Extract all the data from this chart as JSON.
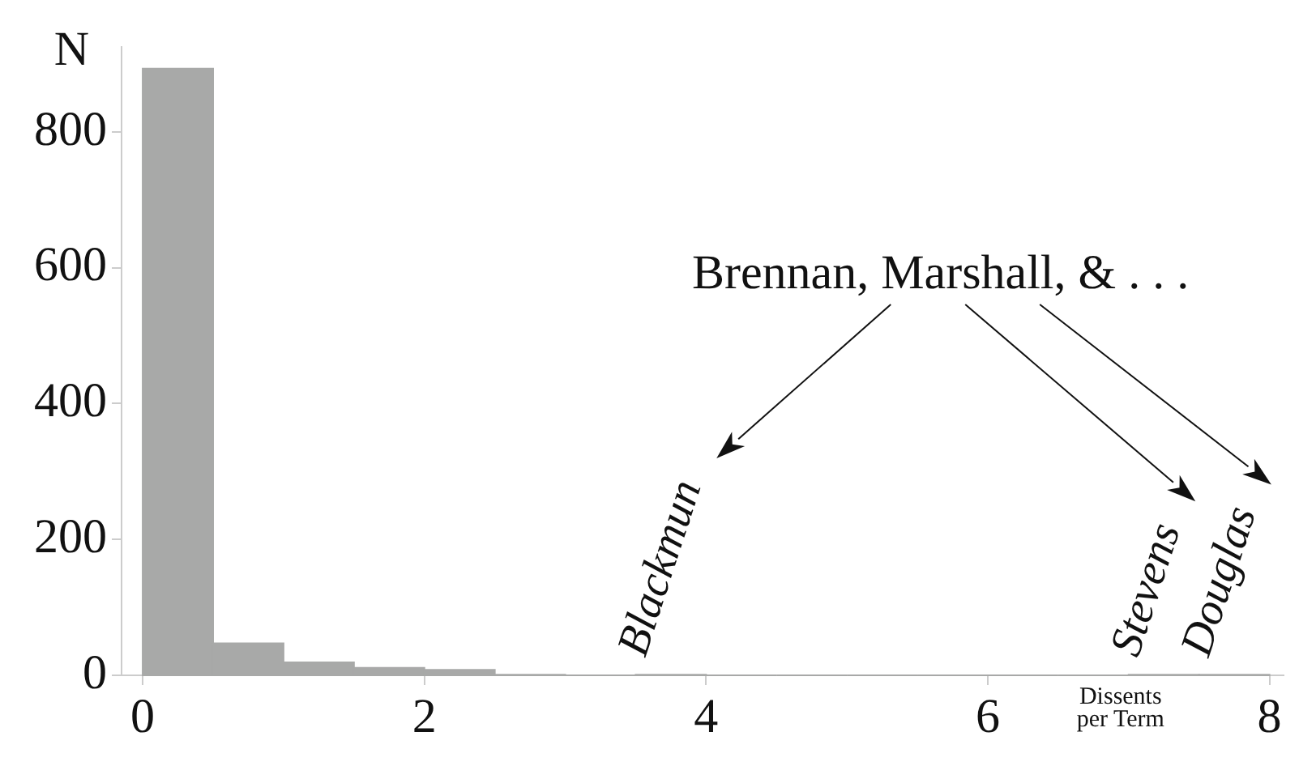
{
  "chart_data": {
    "type": "histogram",
    "xlabel": "Dissents per Term",
    "ylabel": "N",
    "bins": [
      0,
      0.5,
      1,
      1.5,
      2,
      2.5,
      3,
      3.5,
      4,
      4.5,
      5,
      5.5,
      6,
      6.5,
      7,
      7.5,
      8
    ],
    "values": [
      893,
      47,
      19,
      11,
      8,
      1,
      0,
      1,
      0,
      0,
      0,
      0,
      0,
      0,
      1,
      1
    ],
    "color": "#a8a9a8",
    "xlim": [
      -0.15,
      8.1
    ],
    "xticks": [
      0,
      2,
      4,
      6,
      8
    ],
    "ylim": [
      0,
      925
    ],
    "yticks": [
      0,
      200,
      400,
      600,
      800
    ],
    "grid": false,
    "legend": false,
    "annotations": [
      "Brennan, Marshall, & . . .",
      {
        "text": "Blackmun",
        "x": 3.75,
        "y": 1
      },
      {
        "text": "Stevens",
        "x": 7.25,
        "y": 1
      },
      {
        "text": "Douglas",
        "x": 7.75,
        "y": 1
      }
    ]
  }
}
